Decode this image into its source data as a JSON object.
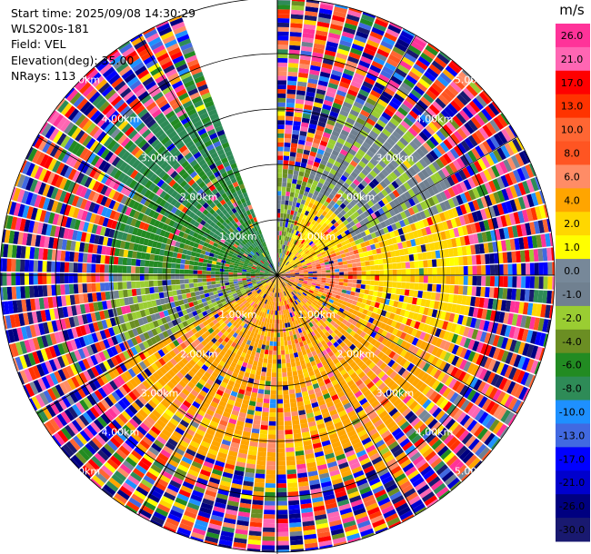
{
  "info": {
    "start_time": "Start time: 2025/09/08 14:30:29",
    "instrument": "WLS200s-181",
    "field": "Field: VEL",
    "elevation": "Elevation(deg): 35.00",
    "nrays": "NRays: 113"
  },
  "chart_data": {
    "type": "heatmap",
    "projection": "polar-ppi",
    "field": "VEL",
    "units": "m/s",
    "elevation_deg": 35.0,
    "n_rays": 113,
    "range_rings_km": [
      1.0,
      2.0,
      3.0,
      4.0,
      5.0
    ],
    "range_ring_labels": [
      "1.00km",
      "2.00km",
      "3.00km",
      "4.00km",
      "5.00km"
    ],
    "max_range_km": 5.0,
    "missing_sector_deg": [
      340,
      360
    ],
    "colorbar": {
      "unit_label": "m/s",
      "ticks": [
        "26.0",
        "21.0",
        "17.0",
        "13.0",
        "10.0",
        "8.0",
        "6.0",
        "4.0",
        "2.0",
        "1.0",
        "0.0",
        "-1.0",
        "-2.0",
        "-4.0",
        "-6.0",
        "-8.0",
        "-10.0",
        "-13.0",
        "-17.0",
        "-21.0",
        "-26.0",
        "-30.0"
      ],
      "bins": [
        {
          "min": 26,
          "max": 30,
          "color": "#ff3399"
        },
        {
          "min": 21,
          "max": 26,
          "color": "#ff66b3"
        },
        {
          "min": 17,
          "max": 21,
          "color": "#ff0000"
        },
        {
          "min": 13,
          "max": 17,
          "color": "#ff3300"
        },
        {
          "min": 10,
          "max": 13,
          "color": "#ff6633"
        },
        {
          "min": 8,
          "max": 10,
          "color": "#ff5522"
        },
        {
          "min": 6,
          "max": 8,
          "color": "#ff8c66"
        },
        {
          "min": 4,
          "max": 6,
          "color": "#ffa500"
        },
        {
          "min": 2,
          "max": 4,
          "color": "#ffd700"
        },
        {
          "min": 1,
          "max": 2,
          "color": "#ffff00"
        },
        {
          "min": 0,
          "max": 1,
          "color": "#778899"
        },
        {
          "min": -1,
          "max": 0,
          "color": "#708090"
        },
        {
          "min": -2,
          "max": -1,
          "color": "#9acd32"
        },
        {
          "min": -4,
          "max": -2,
          "color": "#6b8e23"
        },
        {
          "min": -6,
          "max": -4,
          "color": "#228b22"
        },
        {
          "min": -8,
          "max": -6,
          "color": "#2e8b57"
        },
        {
          "min": -10,
          "max": -8,
          "color": "#1e90ff"
        },
        {
          "min": -13,
          "max": -10,
          "color": "#4169e1"
        },
        {
          "min": -17,
          "max": -13,
          "color": "#0000ff"
        },
        {
          "min": -21,
          "max": -17,
          "color": "#0000cd"
        },
        {
          "min": -26,
          "max": -21,
          "color": "#000080"
        },
        {
          "min": -30,
          "max": -26,
          "color": "#191970"
        }
      ]
    },
    "velocity_regions": [
      {
        "az_deg": [
          0,
          20
        ],
        "range_km": [
          0,
          2.0
        ],
        "vel": -1.5
      },
      {
        "az_deg": [
          20,
          70
        ],
        "range_km": [
          0,
          1.5
        ],
        "vel": 3.0
      },
      {
        "az_deg": [
          20,
          70
        ],
        "range_km": [
          1.5,
          3.5
        ],
        "vel": -0.5
      },
      {
        "az_deg": [
          70,
          110
        ],
        "range_km": [
          0,
          1.5
        ],
        "vel": 7.0
      },
      {
        "az_deg": [
          70,
          110
        ],
        "range_km": [
          1.5,
          3.5
        ],
        "vel": 3.0
      },
      {
        "az_deg": [
          110,
          180
        ],
        "range_km": [
          0,
          1.5
        ],
        "vel": 5.0
      },
      {
        "az_deg": [
          110,
          180
        ],
        "range_km": [
          1.5,
          4.0
        ],
        "vel": 5.0
      },
      {
        "az_deg": [
          180,
          240
        ],
        "range_km": [
          0,
          4.0
        ],
        "vel": 5.0
      },
      {
        "az_deg": [
          240,
          270
        ],
        "range_km": [
          0,
          3.0
        ],
        "vel": -1.5
      },
      {
        "az_deg": [
          270,
          300
        ],
        "range_km": [
          0,
          3.0
        ],
        "vel": -5.0
      },
      {
        "az_deg": [
          300,
          340
        ],
        "range_km": [
          0,
          4.0
        ],
        "vel": -6.5
      }
    ]
  }
}
